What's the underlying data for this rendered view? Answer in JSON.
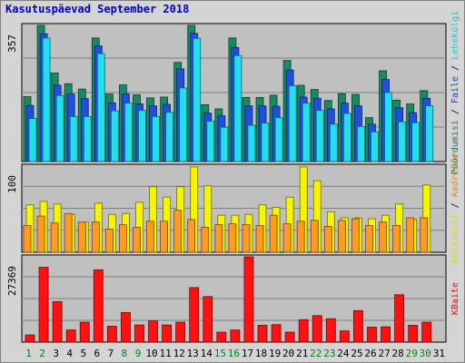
{
  "title": "Kasutuspäevad September 2018",
  "chart_data": [
    {
      "type": "bar",
      "panel": "top",
      "ymax_label": "357",
      "ylim": [
        0,
        357
      ],
      "categories": [
        "1",
        "2",
        "3",
        "4",
        "5",
        "6",
        "7",
        "8",
        "9",
        "10",
        "11",
        "12",
        "13",
        "14",
        "15",
        "16",
        "17",
        "18",
        "19",
        "20",
        "21",
        "22",
        "23",
        "24",
        "25",
        "26",
        "27",
        "28",
        "29",
        "30",
        "31"
      ],
      "series": [
        {
          "name": "Pöördumisi",
          "color": "#188a60",
          "values": [
            170,
            357,
            232,
            204,
            190,
            324,
            177,
            201,
            175,
            167,
            169,
            260,
            357,
            149,
            138,
            324,
            168,
            168,
            174,
            265,
            200,
            189,
            160,
            178,
            176,
            115,
            238,
            161,
            151,
            186,
            0
          ]
        },
        {
          "name": "Faile",
          "color": "#1f4fdf",
          "values": [
            147,
            335,
            200,
            177,
            165,
            303,
            154,
            177,
            151,
            146,
            150,
            243,
            336,
            127,
            120,
            299,
            146,
            146,
            145,
            240,
            169,
            166,
            138,
            153,
            146,
            98,
            215,
            141,
            128,
            166,
            0
          ]
        },
        {
          "name": "Lehekülgi",
          "color": "#22dff0",
          "values": [
            113,
            324,
            173,
            118,
            118,
            283,
            133,
            153,
            134,
            118,
            129,
            193,
            323,
            106,
            90,
            278,
            95,
            101,
            115,
            199,
            153,
            134,
            98,
            126,
            92,
            78,
            181,
            104,
            102,
            146,
            0
          ]
        }
      ]
    },
    {
      "type": "bar",
      "panel": "middle",
      "ymax_label": "100",
      "ylim": [
        0,
        100
      ],
      "categories": [
        "1",
        "2",
        "3",
        "4",
        "5",
        "6",
        "7",
        "8",
        "9",
        "10",
        "11",
        "12",
        "13",
        "14",
        "15",
        "16",
        "17",
        "18",
        "19",
        "20",
        "21",
        "22",
        "23",
        "24",
        "25",
        "26",
        "27",
        "28",
        "29",
        "30",
        "31"
      ],
      "series": [
        {
          "name": "Külastusi",
          "color": "#f5f500",
          "values": [
            55,
            59,
            56,
            44,
            35,
            57,
            44,
            45,
            58,
            76,
            64,
            76,
            99,
            77,
            43,
            43,
            44,
            55,
            52,
            64,
            99,
            83,
            47,
            40,
            40,
            39,
            43,
            56,
            38,
            78,
            0
          ]
        },
        {
          "name": "Aadresse",
          "color": "#ff9a22",
          "values": [
            31,
            42,
            34,
            45,
            35,
            35,
            27,
            32,
            29,
            36,
            36,
            49,
            38,
            29,
            32,
            33,
            32,
            31,
            43,
            33,
            36,
            37,
            30,
            37,
            39,
            31,
            35,
            31,
            40,
            40,
            0
          ]
        }
      ]
    },
    {
      "type": "bar",
      "panel": "bottom",
      "ymax_label": "27369",
      "ylim": [
        0,
        27369
      ],
      "categories": [
        "1",
        "2",
        "3",
        "4",
        "5",
        "6",
        "7",
        "8",
        "9",
        "10",
        "11",
        "12",
        "13",
        "14",
        "15",
        "16",
        "17",
        "18",
        "19",
        "20",
        "21",
        "22",
        "23",
        "24",
        "25",
        "26",
        "27",
        "28",
        "29",
        "30",
        "31"
      ],
      "series": [
        {
          "name": "KBaite",
          "color": "#ff1111",
          "values": [
            2300,
            24000,
            13000,
            3900,
            6400,
            23200,
            5100,
            9500,
            5500,
            6800,
            5500,
            6400,
            17500,
            14600,
            3200,
            3900,
            27369,
            5400,
            5600,
            3200,
            7200,
            8500,
            7500,
            3600,
            10100,
            4800,
            4900,
            15200,
            5400,
            6400,
            0
          ]
        }
      ]
    }
  ],
  "legend_top": [
    "Pöördumisi",
    "Faile",
    "Lehekülgi"
  ],
  "legend_middle": [
    "Külastusi",
    "Aadresse"
  ],
  "legend_bottom": [
    "KBaite"
  ],
  "legend_separator": " / ",
  "weekend_days": [
    "1",
    "2",
    "8",
    "9",
    "15",
    "16",
    "22",
    "23",
    "29",
    "30"
  ],
  "colors": {
    "weekday_label": "#000000",
    "weekend_label": "#00801f",
    "title": "#0000cc",
    "panel_bg": "#c0c0c0",
    "gridline": "#808080"
  }
}
